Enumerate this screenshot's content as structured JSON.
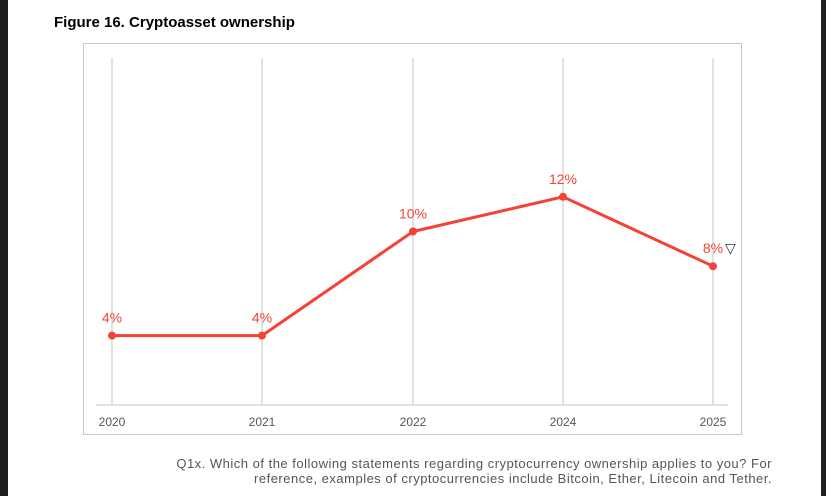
{
  "title": "Figure 16. Cryptoasset ownership",
  "caption": [
    "Q1x. Which of the following statements regarding cryptocurrency ownership applies to you? For",
    "reference, examples of cryptocurrencies include Bitcoin, Ether, Litecoin and Tether."
  ],
  "chart_data": {
    "type": "line",
    "title": "Figure 16. Cryptoasset ownership",
    "categories": [
      "2020",
      "2021",
      "2022",
      "2024",
      "2025"
    ],
    "series": [
      {
        "values": [
          4,
          4,
          10,
          12,
          8
        ],
        "color": "#f44336"
      }
    ],
    "data_labels": [
      "4%",
      "4%",
      "10%",
      "12%",
      "8%"
    ],
    "annotations": [
      {
        "category": "2025",
        "text": "▽",
        "meaning": "significant decrease marker"
      }
    ],
    "ylim": [
      0,
      20
    ],
    "grid": "vertical",
    "legend": "none"
  }
}
